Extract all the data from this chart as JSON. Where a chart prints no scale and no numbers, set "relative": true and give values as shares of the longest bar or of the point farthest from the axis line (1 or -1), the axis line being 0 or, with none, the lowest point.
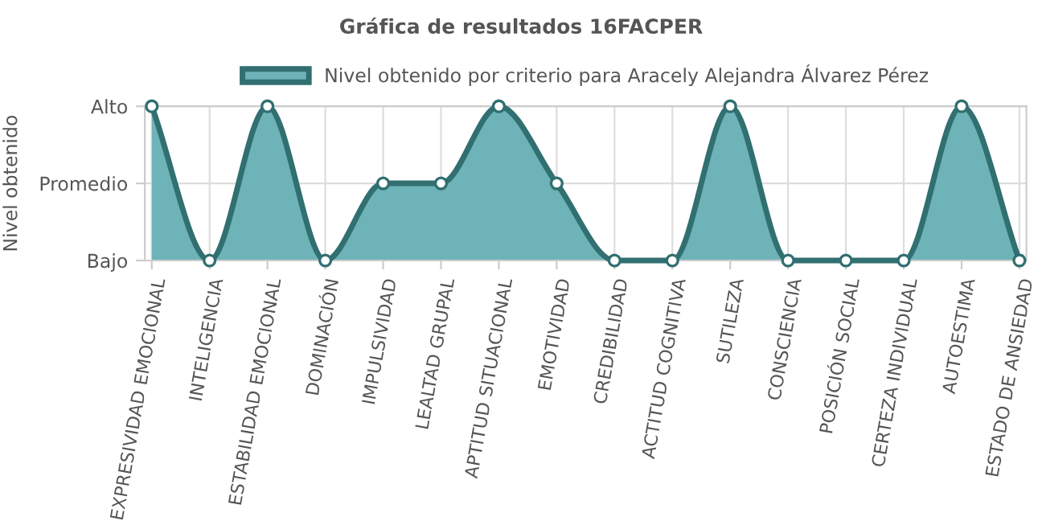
{
  "chart_data": {
    "type": "area",
    "title": "Gráfica de resultados 16FACPER",
    "ylabel": "Nivel obtenido",
    "categories": [
      "EXPRESIVIDAD EMOCIONAL",
      "INTELIGENCIA",
      "ESTABILIDAD EMOCIONAL",
      "DOMINACIÓN",
      "IMPULSIVIDAD",
      "LEALTAD GRUPAL",
      "APTITUD SITUACIONAL",
      "EMOTIVIDAD",
      "CREDIBILIDAD",
      "ACTITUD COGNITIVA",
      "SUTILEZA",
      "CONSCIENCIA",
      "POSICIÓN SOCIAL",
      "CERTEZA INDIVIDUAL",
      "AUTOESTIMA",
      "ESTADO DE ANSIEDAD"
    ],
    "y_categories": [
      "Alto",
      "Promedio",
      "Bajo"
    ],
    "relative": true,
    "series": [
      {
        "name": "Nivel obtenido por criterio para Aracely Alejandra Álvarez Pérez",
        "color": "#6db3b8",
        "values": [
          1,
          0,
          1,
          0,
          0.5,
          0.5,
          1,
          0.5,
          0,
          0,
          1,
          0,
          0,
          0,
          1,
          0
        ]
      }
    ],
    "grid": true,
    "legend": "top",
    "marker": "circle",
    "line_style": "solid"
  }
}
